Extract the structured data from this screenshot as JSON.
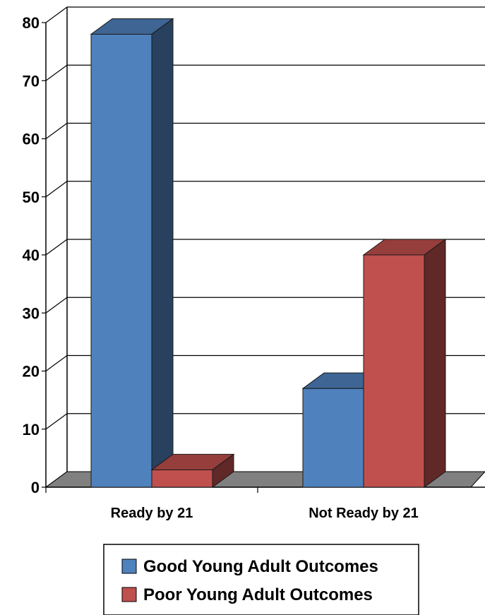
{
  "chart_data": {
    "type": "bar",
    "categories": [
      "Ready by 21",
      "Not Ready by 21"
    ],
    "series": [
      {
        "name": "Good Young Adult Outcomes",
        "values": [
          78,
          17
        ],
        "color": "#4F81BD"
      },
      {
        "name": "Poor Young Adult Outcomes",
        "values": [
          3,
          40
        ],
        "color": "#C0504D"
      }
    ],
    "title": "",
    "xlabel": "",
    "ylabel": "",
    "ylim": [
      0,
      80
    ],
    "yticks": [
      0,
      10,
      20,
      30,
      40,
      50,
      60,
      70,
      80
    ],
    "grid": true,
    "style": "3d-clustered",
    "legend_position": "bottom",
    "colors": {
      "floor": "#808080",
      "gridline": "#000000",
      "wall": "#ffffff"
    }
  }
}
